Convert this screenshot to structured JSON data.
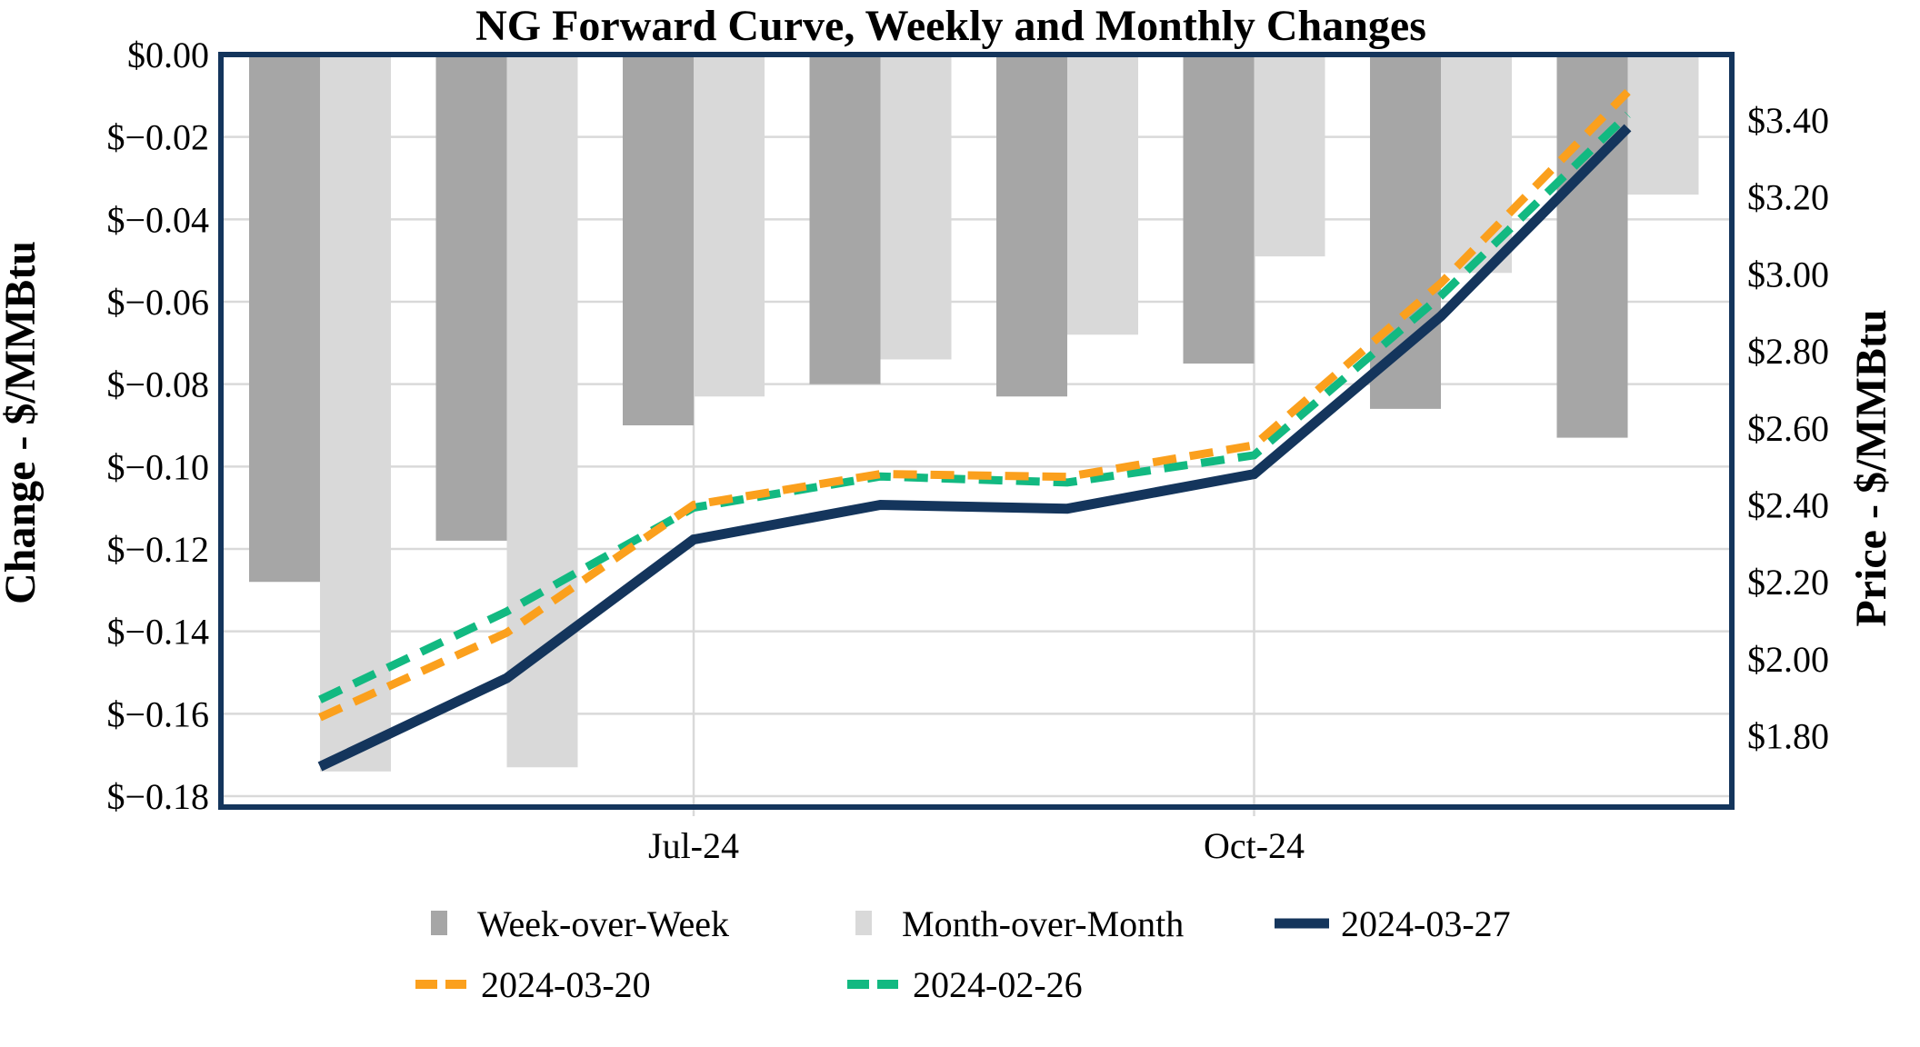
{
  "title": "NG Forward Curve, Weekly and Monthly Changes",
  "left_axis": {
    "title": "Change - $/MMBtu",
    "tick_labels": [
      "$0.00",
      "$−0.02",
      "$−0.04",
      "$−0.06",
      "$−0.08",
      "$−0.10",
      "$−0.12",
      "$−0.14",
      "$−0.16",
      "$−0.18"
    ],
    "first_value": 0.0,
    "step": -0.02
  },
  "right_axis": {
    "title": "Price - $/MMBtu",
    "tick_labels": [
      "$3.40",
      "$3.20",
      "$3.00",
      "$2.80",
      "$2.60",
      "$2.40",
      "$2.20",
      "$2.00",
      "$1.80"
    ],
    "first_value": 3.4,
    "step": -0.2
  },
  "x_axis": {
    "tick_labels": [
      "Jul-24",
      "Oct-24"
    ],
    "tick_category_indices": [
      2,
      5
    ]
  },
  "legend": {
    "rows": [
      [
        {
          "swatch": "bar",
          "color_key": "wow_bar",
          "label": "Week-over-Week"
        },
        {
          "swatch": "bar",
          "color_key": "mom_bar",
          "label": "Month-over-Month"
        },
        {
          "swatch": "line-solid",
          "color_key": "line_navy",
          "label": "2024-03-27"
        }
      ],
      [
        {
          "swatch": "line-dashed",
          "color_key": "line_orange",
          "label": "2024-03-20"
        },
        {
          "swatch": "line-dashed",
          "color_key": "line_green",
          "label": "2024-02-26"
        }
      ]
    ]
  },
  "colors": {
    "wow_bar": "#a6a6a6",
    "mom_bar": "#d9d9d9",
    "line_navy": "#14355c",
    "line_orange": "#fba01d",
    "line_green": "#12b981",
    "gridline": "#d9d9d9",
    "plot_border": "#14355c",
    "text": "#000000"
  },
  "chart_data": {
    "type": "bar+line combo",
    "categories": [
      "",
      "",
      "Jul-24",
      "",
      "",
      "Oct-24",
      "",
      ""
    ],
    "series": [
      {
        "name": "Week-over-Week",
        "type": "bar",
        "axis": "left",
        "values": [
          -0.128,
          -0.118,
          -0.09,
          -0.08,
          -0.083,
          -0.075,
          -0.086,
          -0.093
        ]
      },
      {
        "name": "Month-over-Month",
        "type": "bar",
        "axis": "left",
        "values": [
          -0.174,
          -0.173,
          -0.083,
          -0.074,
          -0.068,
          -0.049,
          -0.053,
          -0.034
        ]
      },
      {
        "name": "2024-03-27",
        "type": "line",
        "style": "solid",
        "axis": "right",
        "values": [
          1.72,
          1.95,
          2.31,
          2.4,
          2.39,
          2.48,
          2.89,
          3.38
        ]
      },
      {
        "name": "2024-03-20",
        "type": "line",
        "style": "dashed",
        "axis": "right",
        "values": [
          1.848,
          2.068,
          2.4,
          2.48,
          2.473,
          2.555,
          2.976,
          3.473
        ]
      },
      {
        "name": "2024-02-26",
        "type": "line",
        "style": "dashed",
        "axis": "right",
        "values": [
          1.894,
          2.123,
          2.393,
          2.474,
          2.458,
          2.529,
          2.943,
          3.414
        ]
      }
    ],
    "title": "NG Forward Curve, Weekly and Monthly Changes",
    "xlabel": "",
    "ylabel_left": "Change - $/MMBtu",
    "ylabel_right": "Price - $/MMBtu",
    "left_ylim": [
      -0.183,
      0.0
    ],
    "grid": "horizontal every 0.02, vertical at labeled ticks only",
    "legend_position": "bottom"
  }
}
